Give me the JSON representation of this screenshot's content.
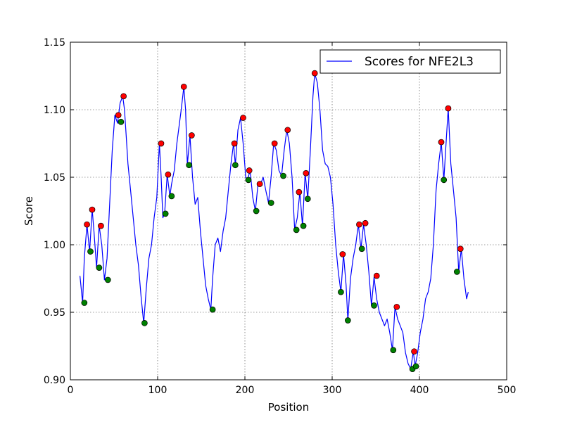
{
  "chart_data": {
    "type": "line",
    "xlabel": "Position",
    "ylabel": "Score",
    "xlim": [
      0,
      500
    ],
    "ylim": [
      0.9,
      1.15
    ],
    "xticks": [
      "0",
      "100",
      "200",
      "300",
      "400",
      "500"
    ],
    "yticks": [
      "0.90",
      "0.95",
      "1.00",
      "1.05",
      "1.10",
      "1.15"
    ],
    "grid": true,
    "legend_position": "top-right",
    "colors": {
      "line": "#0000ff",
      "peak": "#ff0000",
      "trough": "#008000"
    },
    "series": [
      {
        "name": "Scores for NFE2L3",
        "x": [
          11,
          14,
          16,
          19,
          22,
          25,
          27,
          30,
          33,
          36,
          39,
          42,
          45,
          48,
          51,
          54,
          57,
          60,
          62,
          64,
          66,
          69,
          72,
          75,
          78,
          81,
          84,
          87,
          90,
          93,
          96,
          99,
          102,
          104,
          106,
          108,
          111,
          114,
          116,
          119,
          122,
          125,
          127,
          130,
          132,
          134,
          137,
          140,
          143,
          146,
          149,
          152,
          155,
          158,
          161,
          163,
          166,
          169,
          172,
          175,
          178,
          181,
          184,
          187,
          189,
          192,
          195,
          198,
          201,
          203,
          206,
          209,
          212,
          215,
          218,
          221,
          224,
          227,
          230,
          233,
          236,
          239,
          242,
          245,
          248,
          251,
          254,
          257,
          260,
          263,
          266,
          269,
          272,
          275,
          278,
          280,
          283,
          286,
          289,
          292,
          295,
          298,
          301,
          304,
          307,
          310,
          313,
          316,
          318,
          321,
          324,
          327,
          330,
          333,
          336,
          339,
          342,
          345,
          348,
          351,
          354,
          357,
          360,
          363,
          366,
          369,
          372,
          375,
          378,
          381,
          384,
          387,
          390,
          393,
          395,
          398,
          401,
          404,
          407,
          410,
          413,
          416,
          419,
          422,
          425,
          428,
          431,
          433,
          436,
          439,
          442,
          445,
          448,
          451,
          454,
          456
        ],
        "y": [
          0.977,
          0.957,
          0.99,
          1.015,
          0.995,
          1.026,
          1.01,
          0.983,
          1.014,
          1.0,
          0.974,
          0.99,
          1.03,
          1.07,
          1.096,
          1.09,
          1.105,
          1.11,
          1.1,
          1.08,
          1.06,
          1.04,
          1.02,
          1.0,
          0.985,
          0.962,
          0.942,
          0.968,
          0.99,
          1.0,
          1.02,
          1.035,
          1.075,
          1.05,
          1.02,
          1.023,
          1.052,
          1.036,
          1.045,
          1.055,
          1.075,
          1.09,
          1.1,
          1.117,
          1.1,
          1.059,
          1.081,
          1.05,
          1.03,
          1.035,
          1.01,
          0.99,
          0.97,
          0.96,
          0.952,
          0.975,
          1.0,
          1.005,
          0.995,
          1.01,
          1.02,
          1.04,
          1.06,
          1.075,
          1.059,
          1.085,
          1.094,
          1.075,
          1.05,
          1.048,
          1.055,
          1.035,
          1.025,
          1.045,
          1.045,
          1.05,
          1.04,
          1.031,
          1.05,
          1.075,
          1.07,
          1.055,
          1.051,
          1.07,
          1.085,
          1.075,
          1.05,
          1.011,
          1.02,
          1.039,
          1.014,
          1.053,
          1.034,
          1.07,
          1.11,
          1.127,
          1.12,
          1.1,
          1.07,
          1.06,
          1.058,
          1.05,
          1.03,
          1.0,
          0.98,
          0.965,
          0.993,
          0.97,
          0.944,
          0.975,
          0.99,
          1.0,
          1.015,
          0.997,
          1.015,
          1.0,
          0.98,
          0.955,
          0.976,
          0.96,
          0.95,
          0.945,
          0.94,
          0.945,
          0.935,
          0.922,
          0.954,
          0.945,
          0.94,
          0.935,
          0.92,
          0.912,
          0.908,
          0.921,
          0.91,
          0.92,
          0.935,
          0.945,
          0.96,
          0.965,
          0.975,
          1.0,
          1.04,
          1.06,
          1.076,
          1.048,
          1.08,
          1.101,
          1.06,
          1.04,
          1.02,
          0.98,
          0.997,
          0.975,
          0.96,
          0.965
        ]
      }
    ],
    "peak_points": [
      [
        19,
        1.015
      ],
      [
        25,
        1.026
      ],
      [
        35,
        1.014
      ],
      [
        55,
        1.096
      ],
      [
        61,
        1.11
      ],
      [
        104,
        1.075
      ],
      [
        112,
        1.052
      ],
      [
        130,
        1.117
      ],
      [
        139,
        1.081
      ],
      [
        188,
        1.075
      ],
      [
        198,
        1.094
      ],
      [
        205,
        1.055
      ],
      [
        217,
        1.045
      ],
      [
        234,
        1.075
      ],
      [
        249,
        1.085
      ],
      [
        262,
        1.039
      ],
      [
        270,
        1.053
      ],
      [
        280,
        1.127
      ],
      [
        312,
        0.993
      ],
      [
        331,
        1.015
      ],
      [
        338,
        1.016
      ],
      [
        351,
        0.977
      ],
      [
        374,
        0.954
      ],
      [
        394,
        0.921
      ],
      [
        425,
        1.076
      ],
      [
        433,
        1.101
      ],
      [
        447,
        0.997
      ]
    ],
    "trough_points": [
      [
        16,
        0.957
      ],
      [
        23,
        0.995
      ],
      [
        33,
        0.983
      ],
      [
        43,
        0.974
      ],
      [
        58,
        1.091
      ],
      [
        85,
        0.942
      ],
      [
        109,
        1.023
      ],
      [
        116,
        1.036
      ],
      [
        136,
        1.059
      ],
      [
        163,
        0.952
      ],
      [
        189,
        1.059
      ],
      [
        204,
        1.048
      ],
      [
        213,
        1.025
      ],
      [
        230,
        1.031
      ],
      [
        244,
        1.051
      ],
      [
        259,
        1.011
      ],
      [
        267,
        1.014
      ],
      [
        272,
        1.034
      ],
      [
        310,
        0.965
      ],
      [
        318,
        0.944
      ],
      [
        334,
        0.997
      ],
      [
        348,
        0.955
      ],
      [
        370,
        0.922
      ],
      [
        392,
        0.908
      ],
      [
        396,
        0.91
      ],
      [
        428,
        1.048
      ],
      [
        443,
        0.98
      ]
    ]
  }
}
